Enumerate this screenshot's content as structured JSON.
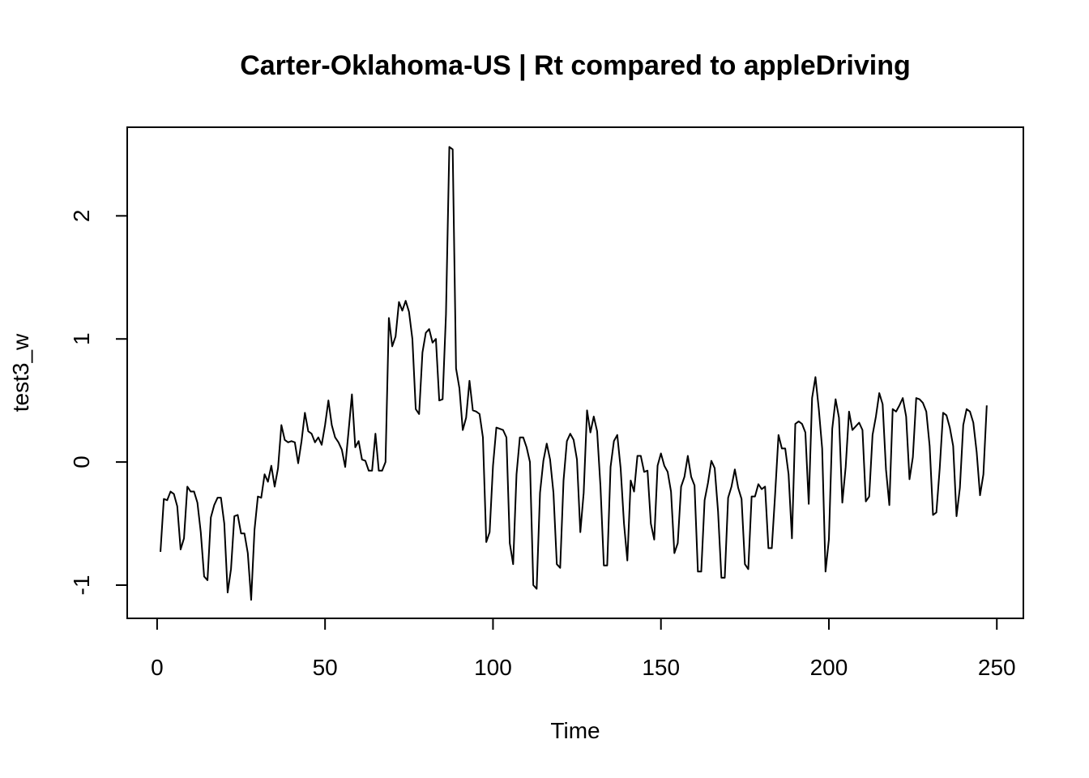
{
  "chart_data": {
    "type": "line",
    "title": "Carter-Oklahoma-US | Rt compared to appleDriving",
    "xlabel": "Time",
    "ylabel": "test3_w",
    "xlim": [
      -8.9,
      257.9
    ],
    "ylim": [
      -1.27,
      2.72
    ],
    "xticks": [
      0,
      50,
      100,
      150,
      200,
      250
    ],
    "xtick_labels": [
      "0",
      "50",
      "100",
      "150",
      "200",
      "250"
    ],
    "yticks": [
      -1,
      0,
      1,
      2
    ],
    "ytick_labels": [
      "-1",
      "0",
      "1",
      "2"
    ],
    "grid": false,
    "legend": "none",
    "line_color": "#000000",
    "series": [
      {
        "x_start": 1,
        "values": [
          -0.73,
          -0.3,
          -0.31,
          -0.24,
          -0.26,
          -0.36,
          -0.71,
          -0.62,
          -0.2,
          -0.24,
          -0.24,
          -0.33,
          -0.57,
          -0.93,
          -0.96,
          -0.45,
          -0.35,
          -0.29,
          -0.29,
          -0.5,
          -1.06,
          -0.87,
          -0.44,
          -0.43,
          -0.58,
          -0.58,
          -0.74,
          -1.12,
          -0.55,
          -0.28,
          -0.29,
          -0.1,
          -0.16,
          -0.03,
          -0.2,
          -0.05,
          0.3,
          0.18,
          0.16,
          0.17,
          0.16,
          -0.01,
          0.17,
          0.4,
          0.25,
          0.23,
          0.16,
          0.2,
          0.14,
          0.3,
          0.5,
          0.3,
          0.2,
          0.16,
          0.1,
          -0.04,
          0.25,
          0.55,
          0.12,
          0.17,
          0.02,
          0.01,
          -0.07,
          -0.07,
          0.23,
          -0.07,
          -0.07,
          0.0,
          1.17,
          0.94,
          1.02,
          1.3,
          1.23,
          1.31,
          1.22,
          1.0,
          0.43,
          0.39,
          0.89,
          1.05,
          1.08,
          0.97,
          1.0,
          0.5,
          0.51,
          1.2,
          2.56,
          2.54,
          0.76,
          0.6,
          0.26,
          0.36,
          0.66,
          0.42,
          0.41,
          0.39,
          0.2,
          -0.65,
          -0.57,
          -0.03,
          0.28,
          0.27,
          0.26,
          0.2,
          -0.66,
          -0.83,
          -0.1,
          0.2,
          0.2,
          0.12,
          0.0,
          -1.0,
          -1.03,
          -0.25,
          0.01,
          0.15,
          0.02,
          -0.25,
          -0.83,
          -0.86,
          -0.15,
          0.17,
          0.23,
          0.18,
          0.02,
          -0.57,
          -0.25,
          0.42,
          0.24,
          0.37,
          0.25,
          -0.2,
          -0.84,
          -0.84,
          -0.04,
          0.17,
          0.22,
          -0.05,
          -0.5,
          -0.8,
          -0.15,
          -0.24,
          0.05,
          0.05,
          -0.08,
          -0.07,
          -0.5,
          -0.63,
          -0.03,
          0.07,
          -0.03,
          -0.08,
          -0.24,
          -0.74,
          -0.66,
          -0.2,
          -0.12,
          0.05,
          -0.12,
          -0.19,
          -0.89,
          -0.89,
          -0.31,
          -0.17,
          0.01,
          -0.05,
          -0.4,
          -0.94,
          -0.94,
          -0.29,
          -0.2,
          -0.06,
          -0.21,
          -0.3,
          -0.83,
          -0.87,
          -0.28,
          -0.28,
          -0.18,
          -0.22,
          -0.2,
          -0.7,
          -0.7,
          -0.26,
          0.22,
          0.11,
          0.11,
          -0.1,
          -0.62,
          0.31,
          0.33,
          0.31,
          0.24,
          -0.34,
          0.52,
          0.69,
          0.43,
          0.11,
          -0.89,
          -0.63,
          0.27,
          0.51,
          0.36,
          -0.33,
          -0.04,
          0.41,
          0.26,
          0.29,
          0.32,
          0.26,
          -0.32,
          -0.28,
          0.22,
          0.37,
          0.56,
          0.47,
          -0.06,
          -0.35,
          0.43,
          0.41,
          0.46,
          0.52,
          0.37,
          -0.14,
          0.04,
          0.52,
          0.51,
          0.48,
          0.41,
          0.13,
          -0.43,
          -0.41,
          -0.05,
          0.4,
          0.38,
          0.28,
          0.13,
          -0.44,
          -0.21,
          0.3,
          0.43,
          0.41,
          0.32,
          0.08,
          -0.27,
          -0.1,
          0.46
        ]
      }
    ]
  }
}
